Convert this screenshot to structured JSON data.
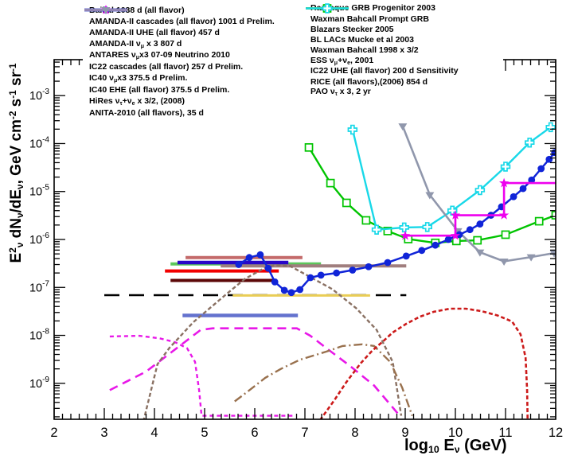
{
  "figure": {
    "x_axis_label_html": "log<sub>10</sub> E<sub>&nu;</sub> (GeV)",
    "y_axis_label_html": "E<sup>2</sup><sub>&nu;</sub> dN<sub>&nu;</sub>/dE<sub>&nu;</sub>, GeV cm<sup>-2</sup> s<sup>-1</sup> sr<sup>-1</sup>"
  },
  "chart_data": {
    "type": "line",
    "title": "",
    "xlabel": "log10 E_nu (GeV)",
    "ylabel": "E^2_nu dN_nu/dE_nu, GeV cm^-2 s^-1 sr^-1",
    "x_range": [
      2,
      12
    ],
    "y_range_exp": [
      -9.75,
      -2.25
    ],
    "x_major_ticks": [
      2,
      3,
      4,
      5,
      6,
      7,
      8,
      9,
      10,
      11,
      12
    ],
    "x_tick_labels": [
      "2",
      "3",
      "4",
      "5",
      "6",
      "7",
      "8",
      "9",
      "10",
      "11",
      "12"
    ],
    "y_tick_exponents": [
      -3,
      -4,
      -5,
      -6,
      -7,
      -8,
      -9
    ],
    "grid": false,
    "legend_position": "top",
    "series": [
      {
        "name": "wb1998",
        "label_html": "Waxman Bahcall 1998 x 3/2",
        "color": "#000000",
        "width": 2.6,
        "style": "dashed",
        "dash": "19,12",
        "marker": "none",
        "points": [
          [
            3.0,
            6.9e-08
          ],
          [
            9.02,
            6.9e-08
          ]
        ]
      },
      {
        "name": "baikal",
        "label_html": "Baikal 1038 d (all flavor)",
        "color": "#5CC85C",
        "width": 4,
        "style": "solid",
        "dash": "",
        "marker": "none",
        "points": [
          [
            4.32,
            3.1e-07
          ],
          [
            7.32,
            3.1e-07
          ]
        ]
      },
      {
        "name": "amanda_cascades",
        "label_html": "AMANDA-II cascades (all flavor) 1001 d Prelim.",
        "color": "#C46A6A",
        "width": 4,
        "style": "solid",
        "dash": "",
        "marker": "none",
        "points": [
          [
            4.62,
            4.2e-07
          ],
          [
            6.95,
            4.2e-07
          ]
        ]
      },
      {
        "name": "amanda_uhe",
        "label_html": "AMANDA-II UHE (all flavor) 457 d",
        "color": "#A07E7E",
        "width": 4,
        "style": "solid",
        "dash": "",
        "marker": "none",
        "points": [
          [
            5.32,
            2.8e-07
          ],
          [
            9.02,
            2.8e-07
          ]
        ]
      },
      {
        "name": "amanda_numu",
        "label_html": "AMANDA-II &nu;<sub>&mu;</sub> x 3 807 d",
        "color": "#F20000",
        "width": 4,
        "style": "solid",
        "dash": "",
        "marker": "none",
        "points": [
          [
            4.21,
            2.2e-07
          ],
          [
            6.48,
            2.2e-07
          ]
        ]
      },
      {
        "name": "antares",
        "label_html": "ANTARES &nu;<sub>&mu;</sub>x3 07-09 Neutrino 2010",
        "color": "#5C0808",
        "width": 4,
        "style": "solid",
        "dash": "",
        "marker": "none",
        "points": [
          [
            4.32,
            1.4e-07
          ],
          [
            6.44,
            1.4e-07
          ]
        ]
      },
      {
        "name": "ic22_cascades",
        "label_html": "IC22 cascades (all flavor) 257 d Prelim.",
        "color": "#2806C8",
        "width": 4.5,
        "style": "solid",
        "dash": "",
        "marker": "none",
        "points": [
          [
            4.46,
            3.3e-07
          ],
          [
            6.67,
            3.3e-07
          ]
        ]
      },
      {
        "name": "ic40_numu",
        "label_html": "IC40 &nu;<sub>&mu;</sub>x3 375.5 d Prelim.",
        "color": "#6472CE",
        "width": 4.5,
        "style": "solid",
        "dash": "",
        "marker": "none",
        "points": [
          [
            4.56,
            2.6e-08
          ],
          [
            6.86,
            2.6e-08
          ]
        ]
      },
      {
        "name": "ic22_uhe",
        "label_html": "IC22 UHE  (all flavor) 200 d Sensitivity",
        "color": "#E9CD55",
        "width": 3,
        "style": "solid",
        "dash": "",
        "marker": "none",
        "points": [
          [
            5.56,
            6.8e-08
          ],
          [
            8.3,
            6.8e-08
          ]
        ]
      },
      {
        "name": "razzaque",
        "label_html": "Razzaque GRB Progenitor 2003",
        "color": "#E818E8",
        "width": 2.4,
        "style": "dashed",
        "dash": "5,4",
        "marker": "none",
        "points": [
          [
            3.11,
            9.5e-09
          ],
          [
            3.7,
            9.8e-09
          ],
          [
            4.1,
            8.7e-09
          ],
          [
            4.41,
            7.2e-09
          ],
          [
            4.65,
            5.4e-09
          ],
          [
            4.81,
            2.8e-09
          ],
          [
            4.89,
            7.2e-10
          ],
          [
            4.94,
            2.1e-10
          ],
          [
            6.75,
            2.1e-10
          ]
        ]
      },
      {
        "name": "wb_prompt",
        "label_html": "Waxman Bahcall Prompt GRB",
        "color": "#E818E8",
        "width": 2.6,
        "style": "dashed",
        "dash": "11,7",
        "marker": "none",
        "points": [
          [
            3.11,
            7.2e-10
          ],
          [
            3.83,
            1.75e-09
          ],
          [
            4.57,
            6.8e-09
          ],
          [
            4.92,
            1.3e-08
          ],
          [
            5.16,
            1.4e-08
          ],
          [
            6.84,
            1.4e-08
          ],
          [
            7.11,
            9.8e-09
          ],
          [
            7.43,
            5.4e-09
          ],
          [
            7.9,
            2.3e-09
          ],
          [
            8.38,
            9e-10
          ],
          [
            8.89,
            2.1e-10
          ]
        ]
      },
      {
        "name": "stecker",
        "label_html": "Blazars Stecker 2005",
        "color": "#8A7163",
        "width": 2.4,
        "style": "dashed",
        "dash": "5,3",
        "marker": "none",
        "points": [
          [
            3.78,
            1.6e-10
          ],
          [
            4.06,
            2.5e-09
          ],
          [
            4.3,
            5.5e-09
          ],
          [
            4.78,
            1.9e-08
          ],
          [
            5.41,
            6.9e-08
          ],
          [
            5.8,
            1.5e-07
          ],
          [
            6.21,
            2.6e-07
          ],
          [
            6.4,
            2.9e-07
          ],
          [
            6.7,
            2.8e-07
          ],
          [
            6.92,
            2.1e-07
          ],
          [
            7.54,
            9.3e-08
          ],
          [
            8.02,
            3.7e-08
          ],
          [
            8.43,
            1.3e-08
          ],
          [
            8.75,
            2.8e-09
          ],
          [
            8.92,
            2.1e-10
          ]
        ]
      },
      {
        "name": "bl_lacs",
        "label_html": "BL LACs Mucke et al 2003",
        "color": "#99714E",
        "width": 2.4,
        "style": "dashdot",
        "dash": "11,4,2,4",
        "marker": "none",
        "points": [
          [
            5.6,
            4.2e-10
          ],
          [
            5.84,
            6.5e-10
          ],
          [
            6.21,
            1.3e-09
          ],
          [
            6.52,
            2e-09
          ],
          [
            6.9,
            3.1e-09
          ],
          [
            7.43,
            4.6e-09
          ],
          [
            7.75,
            6e-09
          ],
          [
            8.14,
            6.5e-09
          ],
          [
            8.38,
            6e-09
          ],
          [
            8.7,
            2.8e-09
          ],
          [
            8.94,
            8.1e-10
          ],
          [
            9.14,
            2.1e-10
          ]
        ]
      },
      {
        "name": "ess",
        "label_html": "ESS &nu;<sub>&mu;</sub>+&nu;<sub>e</sub>, 2001",
        "color": "#CC1A1A",
        "width": 2.6,
        "style": "dashed",
        "dash": "5,3",
        "marker": "none",
        "points": [
          [
            7.3,
            1.7e-10
          ],
          [
            7.59,
            4.5e-10
          ],
          [
            7.83,
            1.07e-09
          ],
          [
            8.11,
            2.6e-09
          ],
          [
            8.35,
            4.9e-09
          ],
          [
            8.54,
            7.2e-09
          ],
          [
            8.75,
            1.15e-08
          ],
          [
            9.02,
            1.74e-08
          ],
          [
            9.29,
            2.45e-08
          ],
          [
            9.57,
            3.1e-08
          ],
          [
            9.89,
            3.6e-08
          ],
          [
            10.21,
            3.6e-08
          ],
          [
            10.52,
            3.2e-08
          ],
          [
            10.84,
            2.6e-08
          ],
          [
            11.13,
            1.95e-08
          ],
          [
            11.3,
            1.05e-08
          ],
          [
            11.4,
            3.4e-09
          ],
          [
            11.43,
            7.2e-10
          ],
          [
            11.44,
            1.8e-10
          ]
        ]
      },
      {
        "name": "rice",
        "label_html": "RICE (all flavors),(2006) 854 d",
        "color": "#00C400",
        "width": 2.4,
        "style": "solid",
        "dash": "",
        "marker": "square",
        "points": [
          [
            7.08,
            8.3e-05
          ],
          [
            7.51,
            1.5e-05
          ],
          [
            7.83,
            5.8e-06
          ],
          [
            8.22,
            2.5e-06
          ],
          [
            8.65,
            1.5e-06
          ],
          [
            9.06,
            1.02e-06
          ],
          [
            9.6,
            8.5e-07
          ],
          [
            10.02,
            9.3e-07
          ],
          [
            10.44,
            9.6e-07
          ],
          [
            11.0,
            1.26e-06
          ],
          [
            11.67,
            2.4e-06
          ],
          [
            12.0,
            3.2e-06
          ]
        ]
      },
      {
        "name": "pao",
        "label_html": "PAO &nu;<sub>&tau;</sub> x 3, 2 yr",
        "color": "#18D8E8",
        "width": 2.4,
        "style": "solid",
        "dash": "",
        "marker": "plus",
        "points": [
          [
            7.95,
            0.000195
          ],
          [
            8.43,
            1.6e-06
          ],
          [
            8.98,
            1.78e-06
          ],
          [
            9.44,
            1.82e-06
          ],
          [
            9.94,
            4e-06
          ],
          [
            10.49,
            1.07e-05
          ],
          [
            11.0,
            3.3e-05
          ],
          [
            11.48,
            0.000105
          ],
          [
            11.9,
            0.00022
          ]
        ]
      },
      {
        "name": "anita",
        "label_html": "ANITA-2010 (all flavors), 35 d",
        "color": "#9097AC",
        "width": 2.6,
        "style": "solid",
        "dash": "",
        "marker": "triangle-down",
        "points": [
          [
            8.95,
            0.00023
          ],
          [
            9.49,
            8.5e-06
          ],
          [
            10.05,
            1.5e-06
          ],
          [
            10.49,
            5.4e-07
          ],
          [
            10.97,
            3.5e-07
          ],
          [
            11.51,
            4.3e-07
          ],
          [
            11.97,
            5.2e-07
          ]
        ]
      },
      {
        "name": "ic40_ehe",
        "label_html": "IC40 EHE  (all flavor) 375.5 d Prelim.",
        "color": "#1024D8",
        "width": 2.5,
        "style": "solid",
        "dash": "",
        "marker": "circle",
        "points": [
          [
            5.68,
            3e-07
          ],
          [
            5.89,
            4.2e-07
          ],
          [
            6.11,
            4.8e-07
          ],
          [
            6.27,
            2.5e-07
          ],
          [
            6.4,
            1.3e-07
          ],
          [
            6.59,
            8.7e-08
          ],
          [
            6.73,
            7.8e-08
          ],
          [
            6.9,
            9e-08
          ],
          [
            7.11,
            1.6e-07
          ],
          [
            7.32,
            1.8e-07
          ],
          [
            7.63,
            2e-07
          ],
          [
            7.95,
            2.3e-07
          ],
          [
            8.27,
            2.7e-07
          ],
          [
            8.65,
            3.3e-07
          ],
          [
            9.02,
            4.5e-07
          ],
          [
            9.33,
            5.9e-07
          ],
          [
            9.6,
            7.6e-07
          ],
          [
            9.86,
            1e-06
          ],
          [
            10.08,
            1.26e-06
          ],
          [
            10.29,
            1.6e-06
          ],
          [
            10.49,
            2.1e-06
          ],
          [
            10.71,
            3.2e-06
          ],
          [
            10.92,
            4.8e-06
          ],
          [
            11.16,
            7.8e-06
          ],
          [
            11.35,
            1.15e-05
          ],
          [
            11.52,
            1.74e-05
          ],
          [
            11.71,
            3e-05
          ],
          [
            11.87,
            4.7e-05
          ],
          [
            11.98,
            6.5e-05
          ]
        ]
      },
      {
        "name": "hires",
        "label_html": "HiRes &nu;<sub>&tau;</sub>+&nu;<sub>e</sub> x 3/2, (2008)",
        "color": "#EE00EE",
        "width": 2.6,
        "style": "solid",
        "dash": "",
        "marker": "star",
        "points": [
          [
            9.0,
            1.2e-06
          ],
          [
            10.0,
            1.2e-06
          ],
          [
            10.0,
            3.2e-06
          ],
          [
            10.97,
            3.2e-06
          ],
          [
            10.97,
            1.5e-05
          ],
          [
            12.0,
            1.5e-05
          ]
        ],
        "marker_points": [
          [
            9.0,
            1.2e-06
          ],
          [
            10.0,
            1.2e-06
          ],
          [
            10.0,
            3.2e-06
          ],
          [
            10.97,
            3.2e-06
          ],
          [
            10.97,
            1.5e-05
          ]
        ]
      }
    ]
  },
  "legend": {
    "left_column": [
      "baikal",
      "amanda_cascades",
      "amanda_uhe",
      "amanda_numu",
      "antares",
      "ic22_cascades",
      "ic40_numu",
      "ic40_ehe",
      "hires",
      "anita"
    ],
    "right_column": [
      "razzaque",
      "wb_prompt",
      "stecker",
      "bl_lacs",
      "wb1998",
      "ess",
      "ic22_uhe",
      "rice",
      "pao"
    ]
  }
}
